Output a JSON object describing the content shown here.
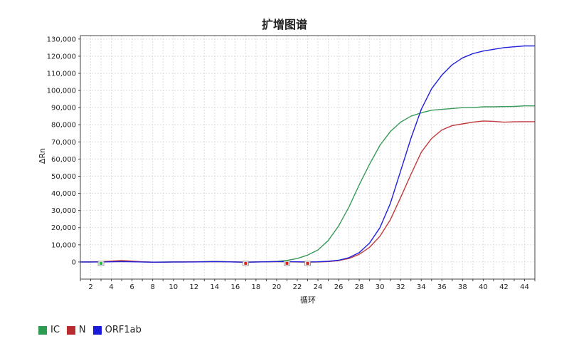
{
  "chart_data": {
    "type": "line",
    "title": "扩增图谱",
    "xlabel": "循环",
    "ylabel": "ΔRn",
    "xlim": [
      1,
      45
    ],
    "ylim": [
      -10000,
      132000
    ],
    "xticks": [
      2,
      4,
      6,
      8,
      10,
      12,
      14,
      16,
      18,
      20,
      22,
      24,
      26,
      28,
      30,
      32,
      34,
      36,
      38,
      40,
      42,
      44
    ],
    "yticks": [
      0,
      10000,
      20000,
      30000,
      40000,
      50000,
      60000,
      70000,
      80000,
      90000,
      100000,
      110000,
      120000,
      130000
    ],
    "ytick_labels": [
      "0",
      "10,000",
      "20,000",
      "30,000",
      "40,000",
      "50,000",
      "60,000",
      "70,000",
      "80,000",
      "90,000",
      "100,000",
      "110,000",
      "120,000",
      "130,000"
    ],
    "grid": true,
    "legend_position": "bottom-left",
    "x": [
      1,
      2,
      3,
      4,
      5,
      6,
      7,
      8,
      9,
      10,
      11,
      12,
      13,
      14,
      15,
      16,
      17,
      18,
      19,
      20,
      21,
      22,
      23,
      24,
      25,
      26,
      27,
      28,
      29,
      30,
      31,
      32,
      33,
      34,
      35,
      36,
      37,
      38,
      39,
      40,
      41,
      42,
      43,
      44,
      45
    ],
    "series": [
      {
        "name": "IC",
        "color": "#3a9a5a",
        "values": [
          0,
          0,
          100,
          300,
          500,
          300,
          0,
          -100,
          0,
          0,
          0,
          100,
          200,
          300,
          200,
          0,
          -100,
          0,
          100,
          300,
          900,
          2000,
          4000,
          7000,
          12500,
          21000,
          32000,
          45000,
          57000,
          68000,
          76000,
          81500,
          85000,
          87000,
          88500,
          89000,
          89500,
          90000,
          90000,
          90500,
          90500,
          90600,
          90700,
          91000,
          91000
        ]
      },
      {
        "name": "N",
        "color": "#c0393b",
        "values": [
          0,
          0,
          200,
          500,
          800,
          500,
          100,
          -100,
          -100,
          0,
          0,
          100,
          100,
          200,
          100,
          0,
          -100,
          0,
          100,
          200,
          100,
          0,
          -100,
          0,
          200,
          800,
          2000,
          4500,
          8500,
          15000,
          24500,
          37500,
          51000,
          64000,
          72000,
          77000,
          79500,
          80500,
          81500,
          82200,
          82000,
          81500,
          81700,
          81800,
          81800
        ]
      },
      {
        "name": "ORF1ab",
        "color": "#2020dd",
        "values": [
          0,
          0,
          0,
          100,
          200,
          100,
          0,
          -100,
          -100,
          0,
          0,
          0,
          100,
          200,
          100,
          0,
          -100,
          0,
          100,
          200,
          200,
          100,
          0,
          100,
          400,
          1000,
          2500,
          5500,
          11000,
          20000,
          34000,
          53000,
          72000,
          89000,
          101000,
          109000,
          115000,
          119000,
          121500,
          123000,
          124000,
          125000,
          125500,
          126000,
          126000
        ]
      }
    ],
    "threshold_markers": [
      {
        "x": 3,
        "color": "#22bb44"
      },
      {
        "x": 17,
        "color": "#dd2222"
      },
      {
        "x": 21,
        "color": "#dd2222"
      },
      {
        "x": 23,
        "color": "#dd2222"
      }
    ]
  },
  "legend": [
    {
      "label": "IC",
      "color": "#2e9b52"
    },
    {
      "label": "N",
      "color": "#b82b2e"
    },
    {
      "label": "ORF1ab",
      "color": "#1a1adb"
    }
  ]
}
